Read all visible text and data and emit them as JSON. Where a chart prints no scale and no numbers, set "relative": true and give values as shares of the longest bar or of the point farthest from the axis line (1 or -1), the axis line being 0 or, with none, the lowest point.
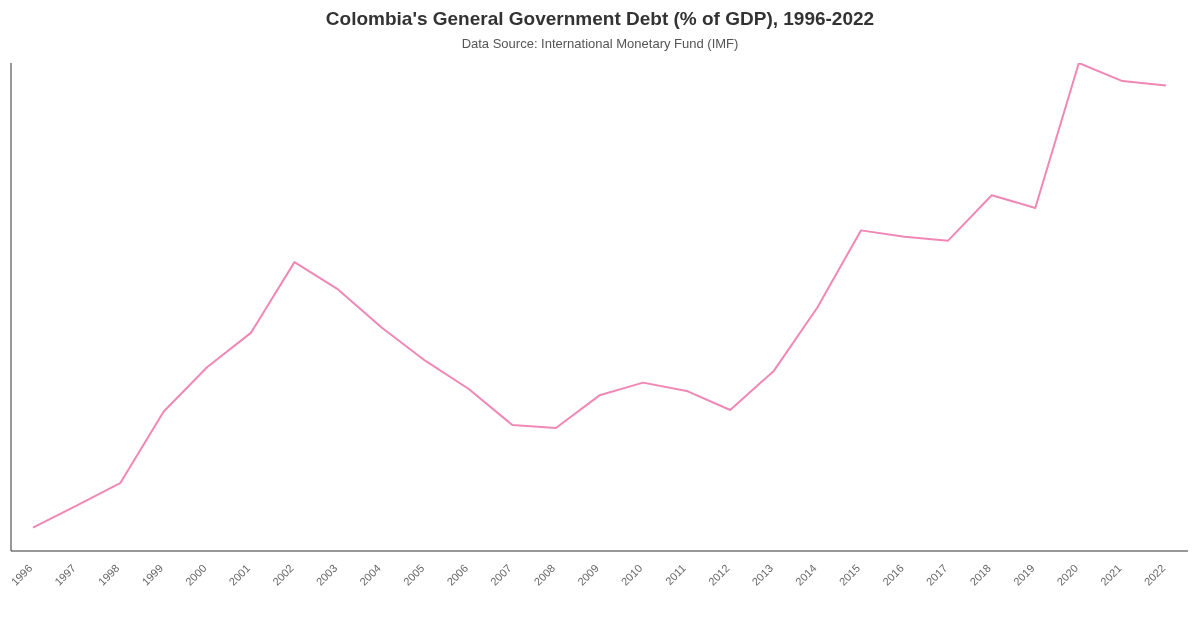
{
  "chart_data": {
    "type": "line",
    "title": "Colombia's General Government Debt (% of GDP), 1996-2022",
    "subtitle": "Data Source: International Monetary Fund (IMF)",
    "categories": [
      "1996",
      "1997",
      "1998",
      "1999",
      "2000",
      "2001",
      "2002",
      "2003",
      "2004",
      "2005",
      "2006",
      "2007",
      "2008",
      "2009",
      "2010",
      "2011",
      "2012",
      "2013",
      "2014",
      "2015",
      "2016",
      "2017",
      "2018",
      "2019",
      "2020",
      "2021",
      "2022"
    ],
    "series": [
      {
        "color": "#f088b6",
        "values": [
          0.048,
          0.093,
          0.139,
          0.286,
          0.377,
          0.447,
          0.592,
          0.536,
          0.458,
          0.39,
          0.332,
          0.258,
          0.252,
          0.319,
          0.345,
          0.328,
          0.289,
          0.369,
          0.499,
          0.657,
          0.644,
          0.636,
          0.729,
          0.703,
          1,
          0.963,
          0.954
        ]
      }
    ],
    "relative": true,
    "grid": false,
    "marker": "none",
    "line_style": "solid"
  }
}
